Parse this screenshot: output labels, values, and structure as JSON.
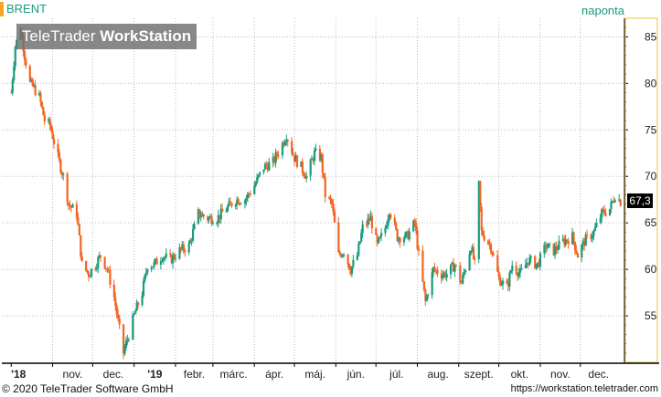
{
  "header": {
    "symbol": "BRENT",
    "frequency": "naponta",
    "watermark_brand": "TeleTrader",
    "watermark_product": "WorkStation"
  },
  "footer": {
    "copyright": "© 2020 TeleTrader Software GmbH",
    "url": "https://workstation.teletrader.com"
  },
  "colors": {
    "up": "#1a9b7c",
    "down": "#f26522",
    "grid": "#bbbbbb",
    "axis": "#000000",
    "right_axis_border": "#f5c242"
  },
  "chart_data": {
    "type": "candlestick",
    "ylim": [
      50,
      87
    ],
    "yticks": [
      55,
      60,
      65,
      70,
      75,
      80,
      85
    ],
    "x_tick_labels": [
      "'18",
      "nov.",
      "dec.",
      "'19",
      "febr.",
      "márc.",
      "ápr.",
      "máj.",
      "jún.",
      "júl.",
      "aug.",
      "szept.",
      "okt.",
      "nov.",
      "dec."
    ],
    "last_value": "67,3",
    "price_path": [
      [
        "2018-10-01",
        79.0
      ],
      [
        "2018-10-04",
        84.0
      ],
      [
        "2018-10-08",
        86.0
      ],
      [
        "2018-10-11",
        83.0
      ],
      [
        "2018-10-15",
        80.0
      ],
      [
        "2018-10-18",
        79.5
      ],
      [
        "2018-10-22",
        78.5
      ],
      [
        "2018-10-26",
        76.0
      ],
      [
        "2018-10-30",
        75.5
      ],
      [
        "2018-11-05",
        72.0
      ],
      [
        "2018-11-09",
        70.0
      ],
      [
        "2018-11-13",
        67.0
      ],
      [
        "2018-11-19",
        66.0
      ],
      [
        "2018-11-23",
        60.5
      ],
      [
        "2018-11-28",
        59.5
      ],
      [
        "2018-12-03",
        60.5
      ],
      [
        "2018-12-07",
        61.5
      ],
      [
        "2018-12-12",
        60.0
      ],
      [
        "2018-12-17",
        57.0
      ],
      [
        "2018-12-21",
        53.5
      ],
      [
        "2018-12-24",
        51.0
      ],
      [
        "2018-12-27",
        52.5
      ],
      [
        "2019-01-02",
        55.5
      ],
      [
        "2019-01-07",
        57.5
      ],
      [
        "2019-01-11",
        60.5
      ],
      [
        "2019-01-16",
        60.5
      ],
      [
        "2019-01-22",
        61.5
      ],
      [
        "2019-01-28",
        61.0
      ],
      [
        "2019-02-04",
        62.0
      ],
      [
        "2019-02-11",
        62.5
      ],
      [
        "2019-02-18",
        66.0
      ],
      [
        "2019-02-25",
        65.5
      ],
      [
        "2019-03-04",
        65.5
      ],
      [
        "2019-03-11",
        66.5
      ],
      [
        "2019-03-18",
        67.5
      ],
      [
        "2019-03-25",
        67.5
      ],
      [
        "2019-04-01",
        69.0
      ],
      [
        "2019-04-08",
        71.0
      ],
      [
        "2019-04-15",
        71.5
      ],
      [
        "2019-04-22",
        73.5
      ],
      [
        "2019-04-25",
        74.5
      ],
      [
        "2019-05-01",
        72.0
      ],
      [
        "2019-05-06",
        71.0
      ],
      [
        "2019-05-10",
        70.0
      ],
      [
        "2019-05-16",
        72.5
      ],
      [
        "2019-05-21",
        72.0
      ],
      [
        "2019-05-24",
        68.0
      ],
      [
        "2019-05-29",
        67.0
      ],
      [
        "2019-06-03",
        61.5
      ],
      [
        "2019-06-07",
        62.0
      ],
      [
        "2019-06-12",
        60.0
      ],
      [
        "2019-06-17",
        61.5
      ],
      [
        "2019-06-21",
        64.5
      ],
      [
        "2019-06-27",
        65.5
      ],
      [
        "2019-07-02",
        62.5
      ],
      [
        "2019-07-08",
        64.5
      ],
      [
        "2019-07-11",
        66.5
      ],
      [
        "2019-07-17",
        63.5
      ],
      [
        "2019-07-24",
        63.5
      ],
      [
        "2019-07-30",
        65.0
      ],
      [
        "2019-08-02",
        61.5
      ],
      [
        "2019-08-07",
        56.5
      ],
      [
        "2019-08-13",
        60.0
      ],
      [
        "2019-08-19",
        59.5
      ],
      [
        "2019-08-23",
        59.5
      ],
      [
        "2019-08-29",
        60.5
      ],
      [
        "2019-09-03",
        58.5
      ],
      [
        "2019-09-10",
        62.5
      ],
      [
        "2019-09-13",
        60.5
      ],
      [
        "2019-09-16",
        69.0
      ],
      [
        "2019-09-18",
        64.0
      ],
      [
        "2019-09-25",
        62.5
      ],
      [
        "2019-10-01",
        59.0
      ],
      [
        "2019-10-07",
        58.0
      ],
      [
        "2019-10-11",
        60.5
      ],
      [
        "2019-10-17",
        59.5
      ],
      [
        "2019-10-23",
        61.0
      ],
      [
        "2019-10-30",
        60.5
      ],
      [
        "2019-11-05",
        62.5
      ],
      [
        "2019-11-11",
        62.0
      ],
      [
        "2019-11-18",
        63.0
      ],
      [
        "2019-11-25",
        63.5
      ],
      [
        "2019-11-29",
        61.5
      ],
      [
        "2019-12-04",
        63.0
      ],
      [
        "2019-12-11",
        64.0
      ],
      [
        "2019-12-17",
        66.0
      ],
      [
        "2019-12-23",
        66.5
      ],
      [
        "2019-12-27",
        68.0
      ],
      [
        "2019-12-31",
        67.3
      ]
    ]
  }
}
